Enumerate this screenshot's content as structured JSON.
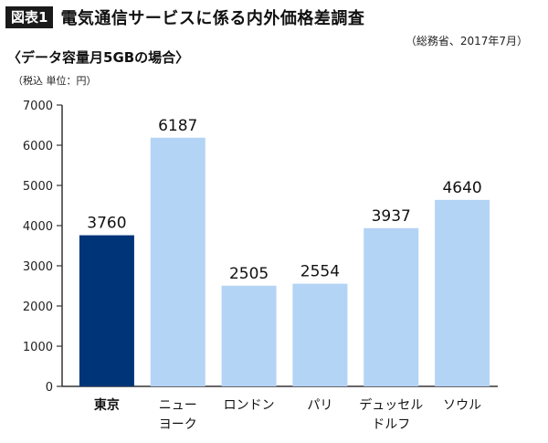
{
  "figure": {
    "tag": "図表1",
    "title": "電気通信サービスに係る内外価格差調査",
    "source": "（総務省、2017年7月）",
    "subtitle": "〈データ容量月5GBの場合〉",
    "unit": "（税込 単位：円）"
  },
  "colors": {
    "highlight": "#003478",
    "normal": "#b4d4f5",
    "axis": "#333333"
  },
  "chart_data": {
    "type": "bar",
    "categories": [
      "東京",
      "ニューヨーク",
      "ロンドン",
      "パリ",
      "デュッセルドルフ",
      "ソウル"
    ],
    "category_lines": [
      [
        "東京"
      ],
      [
        "ニュー",
        "ヨーク"
      ],
      [
        "ロンドン"
      ],
      [
        "パリ"
      ],
      [
        "デュッセル",
        "ドルフ"
      ],
      [
        "ソウル"
      ]
    ],
    "values": [
      3760,
      6187,
      2505,
      2554,
      3937,
      4640
    ],
    "highlight_index": 0,
    "ylim": [
      0,
      7000
    ],
    "yticks": [
      0,
      1000,
      2000,
      3000,
      4000,
      5000,
      6000,
      7000
    ],
    "grid": false,
    "title": "",
    "xlabel": "",
    "ylabel": ""
  }
}
